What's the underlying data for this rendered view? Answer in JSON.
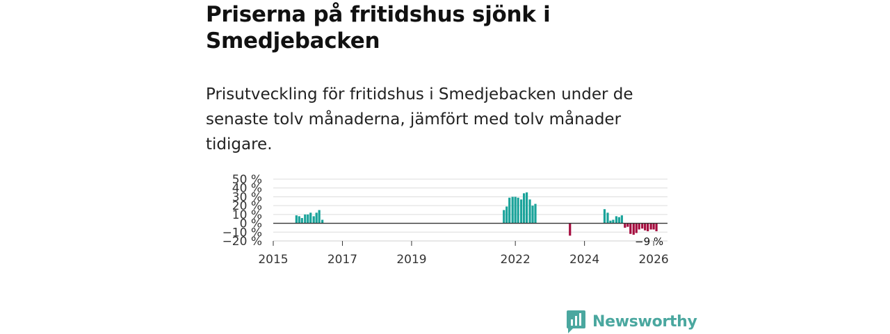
{
  "header": {
    "title": "Priserna på fritidshus sjönk i Smedjebacken",
    "subtitle": "Prisutveckling för fritidshus i Smedjebacken under de senaste tolv månaderna, jämfört med tolv månader tidigare."
  },
  "colors": {
    "positive": "#1aa39a",
    "negative": "#a50d3f",
    "brand": "#4aa79f"
  },
  "chart_data": {
    "type": "bar",
    "title": "Priserna på fritidshus sjönk i Smedjebacken",
    "xlabel": "",
    "ylabel": "",
    "unit": "%",
    "ylim": [
      -20,
      50
    ],
    "xlim": [
      2015.0,
      2026.4
    ],
    "y_ticks": [
      -20,
      -10,
      0,
      10,
      20,
      30,
      40,
      50
    ],
    "y_tick_labels": [
      "−20 %",
      "−10 %",
      "0 %",
      "10 %",
      "20 %",
      "30 %",
      "40 %",
      "50 %"
    ],
    "x_ticks": [
      2015,
      2017,
      2019,
      2022,
      2024,
      2026
    ],
    "x_tick_labels": [
      "2015",
      "2017",
      "2019",
      "2022",
      "2024",
      "2026"
    ],
    "grid": true,
    "end_label": "−9 %",
    "series": [
      {
        "name": "Prisutveckling",
        "dates": [
          2015.67,
          2015.75,
          2015.83,
          2015.92,
          2016.0,
          2016.08,
          2016.17,
          2016.25,
          2016.33,
          2016.42,
          2021.67,
          2021.75,
          2021.83,
          2021.92,
          2022.0,
          2022.08,
          2022.17,
          2022.25,
          2022.33,
          2022.42,
          2022.5,
          2022.58,
          2023.58,
          2024.58,
          2024.67,
          2024.75,
          2024.83,
          2024.92,
          2025.0,
          2025.08,
          2025.17,
          2025.25,
          2025.33,
          2025.42,
          2025.5,
          2025.58,
          2025.67,
          2025.75,
          2025.83,
          2025.92,
          2026.0,
          2026.08
        ],
        "values": [
          9,
          8,
          6,
          10,
          10,
          12,
          8,
          12,
          15,
          4,
          15,
          19,
          29,
          30,
          30,
          29,
          27,
          34,
          35,
          27,
          20,
          22,
          -14,
          16,
          12,
          3,
          4,
          8,
          7,
          9,
          -5,
          -4,
          -12,
          -13,
          -11,
          -7,
          -6,
          -8,
          -9,
          -7,
          -7,
          -9
        ]
      }
    ]
  },
  "logo": {
    "text": "Newsworthy"
  }
}
